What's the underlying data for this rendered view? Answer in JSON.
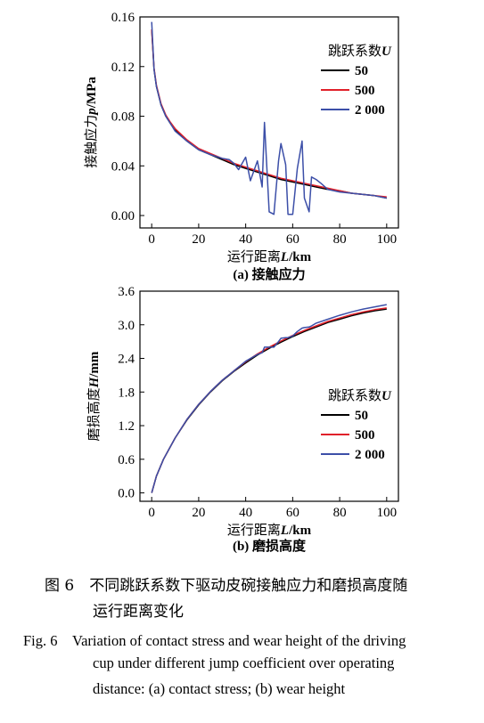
{
  "chart_data": [
    {
      "type": "line",
      "ylabel": "接触应力p/MPa",
      "xlabel": "运行距离L/km",
      "subcaption": "(a) 接触应力",
      "xlim": [
        -5,
        105
      ],
      "ylim": [
        -0.01,
        0.16
      ],
      "xticks": [
        "0",
        "20",
        "40",
        "60",
        "80",
        "100"
      ],
      "xtick_values": [
        0,
        20,
        40,
        60,
        80,
        100
      ],
      "yticks": [
        "0.00",
        "0.04",
        "0.08",
        "0.12",
        "0.16"
      ],
      "ytick_values": [
        0.0,
        0.04,
        0.08,
        0.12,
        0.16
      ],
      "legend_title": "跳跃系数U",
      "legend_placement": "top-right",
      "series": [
        {
          "name": "50",
          "color": "#000000",
          "x": [
            0,
            1,
            2,
            4,
            6,
            8,
            10,
            15,
            20,
            25,
            30,
            35,
            40,
            45,
            50,
            55,
            60,
            65,
            70,
            75,
            80,
            85,
            90,
            95,
            100
          ],
          "y": [
            0.15,
            0.118,
            0.104,
            0.089,
            0.08,
            0.074,
            0.069,
            0.06,
            0.053,
            0.049,
            0.045,
            0.041,
            0.038,
            0.035,
            0.032,
            0.029,
            0.027,
            0.025,
            0.023,
            0.021,
            0.02,
            0.018,
            0.017,
            0.016,
            0.014
          ]
        },
        {
          "name": "500",
          "color": "#e0202a",
          "x": [
            0,
            1,
            2,
            4,
            6,
            8,
            10,
            15,
            20,
            25,
            30,
            35,
            40,
            45,
            50,
            55,
            60,
            65,
            70,
            75,
            80,
            85,
            90,
            95,
            100
          ],
          "y": [
            0.15,
            0.119,
            0.105,
            0.09,
            0.081,
            0.075,
            0.07,
            0.061,
            0.054,
            0.05,
            0.046,
            0.042,
            0.039,
            0.036,
            0.033,
            0.03,
            0.028,
            0.026,
            0.024,
            0.022,
            0.02,
            0.018,
            0.017,
            0.016,
            0.015
          ]
        },
        {
          "name": "2 000",
          "color": "#3c4fa8",
          "x": [
            0,
            1,
            2,
            4,
            6,
            8,
            10,
            15,
            20,
            25,
            30,
            33,
            35,
            37,
            40,
            42,
            45,
            47,
            48,
            50,
            52,
            54,
            55,
            57,
            58,
            60,
            62,
            64,
            65,
            67,
            68,
            70,
            72,
            75,
            80,
            85,
            90,
            95,
            100
          ],
          "y": [
            0.156,
            0.118,
            0.104,
            0.089,
            0.08,
            0.074,
            0.068,
            0.06,
            0.053,
            0.049,
            0.046,
            0.045,
            0.042,
            0.037,
            0.047,
            0.028,
            0.044,
            0.023,
            0.075,
            0.003,
            0.001,
            0.044,
            0.058,
            0.041,
            0.001,
            0.001,
            0.038,
            0.06,
            0.014,
            0.003,
            0.031,
            0.029,
            0.026,
            0.021,
            0.019,
            0.018,
            0.017,
            0.016,
            0.014
          ]
        }
      ]
    },
    {
      "type": "line",
      "ylabel": "磨损高度H/mm",
      "xlabel": "运行距离L/km",
      "subcaption": "(b) 磨损高度",
      "xlim": [
        -5,
        105
      ],
      "ylim": [
        -0.15,
        3.6
      ],
      "xticks": [
        "0",
        "20",
        "40",
        "60",
        "80",
        "100"
      ],
      "xtick_values": [
        0,
        20,
        40,
        60,
        80,
        100
      ],
      "yticks": [
        "0.0",
        "0.6",
        "1.2",
        "1.8",
        "2.4",
        "3.0",
        "3.6"
      ],
      "ytick_values": [
        0.0,
        0.6,
        1.2,
        1.8,
        2.4,
        3.0,
        3.6
      ],
      "legend_title": "跳跃系数U",
      "legend_placement": "center-right",
      "series": [
        {
          "name": "50",
          "color": "#000000",
          "x": [
            0,
            2,
            5,
            10,
            15,
            20,
            25,
            30,
            35,
            40,
            45,
            50,
            55,
            60,
            65,
            70,
            75,
            80,
            85,
            90,
            95,
            100
          ],
          "y": [
            0.0,
            0.3,
            0.6,
            0.98,
            1.3,
            1.57,
            1.8,
            2.0,
            2.17,
            2.32,
            2.46,
            2.58,
            2.69,
            2.79,
            2.88,
            2.96,
            3.04,
            3.1,
            3.16,
            3.21,
            3.25,
            3.28
          ]
        },
        {
          "name": "500",
          "color": "#e0202a",
          "x": [
            0,
            2,
            5,
            10,
            15,
            20,
            25,
            30,
            35,
            40,
            45,
            50,
            55,
            60,
            65,
            70,
            75,
            80,
            85,
            90,
            95,
            100
          ],
          "y": [
            0.0,
            0.3,
            0.6,
            0.98,
            1.31,
            1.58,
            1.81,
            2.01,
            2.18,
            2.34,
            2.48,
            2.6,
            2.71,
            2.81,
            2.9,
            2.98,
            3.06,
            3.12,
            3.18,
            3.23,
            3.27,
            3.3
          ]
        },
        {
          "name": "2 000",
          "color": "#3c4fa8",
          "x": [
            0,
            2,
            5,
            10,
            15,
            20,
            25,
            30,
            35,
            40,
            45,
            47,
            48,
            50,
            52,
            54,
            55,
            57,
            58,
            60,
            62,
            64,
            65,
            67,
            68,
            70,
            75,
            80,
            85,
            90,
            95,
            100
          ],
          "y": [
            0.0,
            0.3,
            0.6,
            0.98,
            1.31,
            1.58,
            1.81,
            2.01,
            2.18,
            2.35,
            2.47,
            2.5,
            2.6,
            2.6,
            2.6,
            2.7,
            2.76,
            2.77,
            2.77,
            2.8,
            2.88,
            2.94,
            2.95,
            2.96,
            2.98,
            3.03,
            3.1,
            3.17,
            3.23,
            3.28,
            3.32,
            3.36
          ]
        }
      ]
    }
  ],
  "caption": {
    "zh_line1": "图 6　不同跳跃系数下驱动皮碗接触应力和磨损高度随",
    "zh_line2": "运行距离变化",
    "en_line1": "Fig. 6　Variation of contact stress and wear height of the driving",
    "en_line2": "cup under different jump coefficient over operating",
    "en_line3": "distance: (a) contact stress; (b) wear height"
  }
}
